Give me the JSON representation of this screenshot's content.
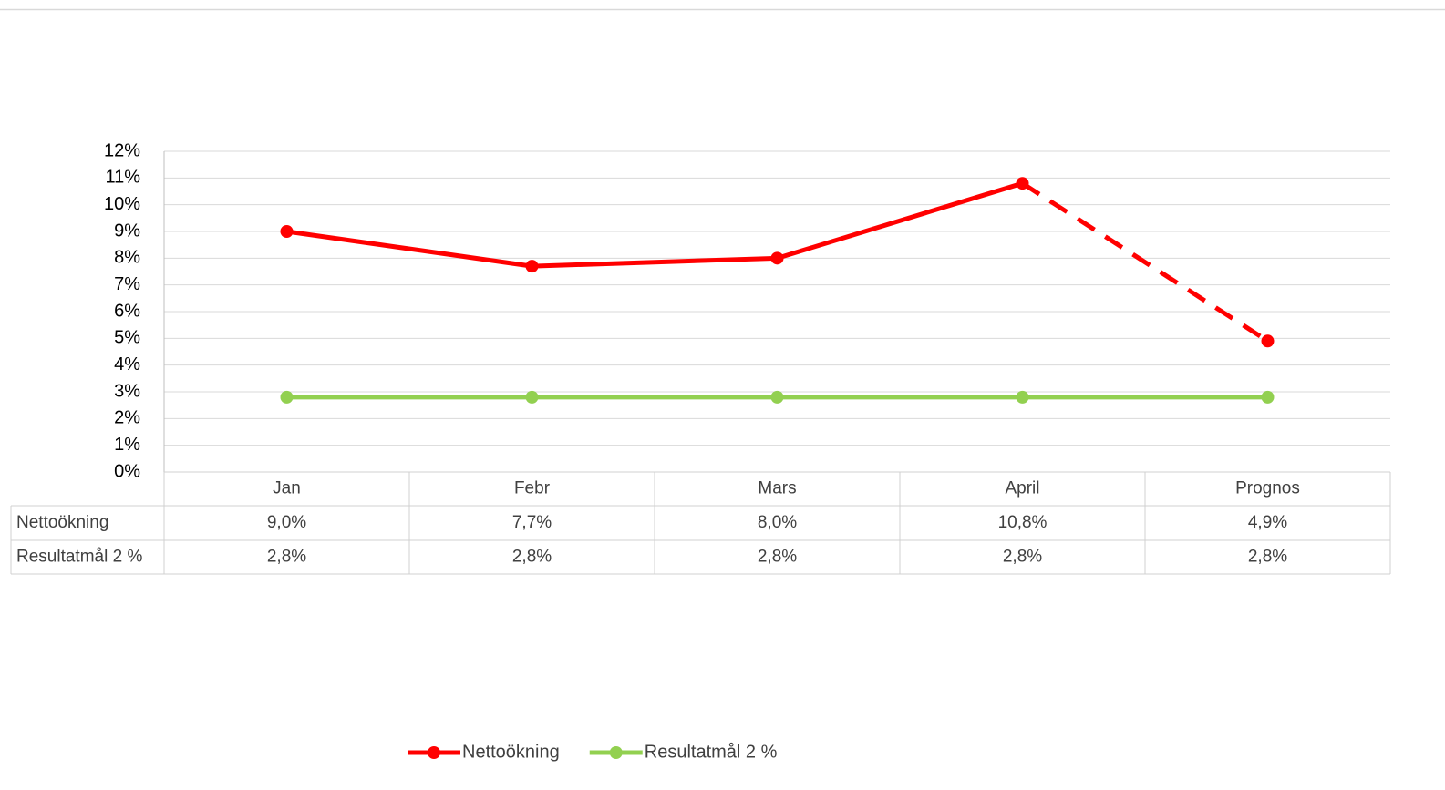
{
  "chart_data": {
    "type": "line",
    "categories": [
      "Jan",
      "Febr",
      "Mars",
      "April",
      "Prognos"
    ],
    "series": [
      {
        "name": "Nettoökning",
        "color": "#ff0000",
        "values": [
          9.0,
          7.7,
          8.0,
          10.8,
          4.9
        ],
        "value_labels": [
          "9,0%",
          "7,7%",
          "8,0%",
          "10,8%",
          "4,9%"
        ],
        "dash_last_segment": true
      },
      {
        "name": "Resultatmål 2 %",
        "color": "#92d050",
        "values": [
          2.8,
          2.8,
          2.8,
          2.8,
          2.8
        ],
        "value_labels": [
          "2,8%",
          "2,8%",
          "2,8%",
          "2,8%",
          "2,8%"
        ],
        "dash_last_segment": false
      }
    ],
    "ylim": [
      0,
      12
    ],
    "yticks": [
      {
        "value": 0,
        "label": "0%"
      },
      {
        "value": 1,
        "label": "1%"
      },
      {
        "value": 2,
        "label": "2%"
      },
      {
        "value": 3,
        "label": "3%"
      },
      {
        "value": 4,
        "label": "4%"
      },
      {
        "value": 5,
        "label": "5%"
      },
      {
        "value": 6,
        "label": "6%"
      },
      {
        "value": 7,
        "label": "7%"
      },
      {
        "value": 8,
        "label": "8%"
      },
      {
        "value": 9,
        "label": "9%"
      },
      {
        "value": 10,
        "label": "10%"
      },
      {
        "value": 11,
        "label": "11%"
      },
      {
        "value": 12,
        "label": "12%"
      }
    ],
    "grid": true,
    "data_table": true,
    "legend": "bottom"
  }
}
